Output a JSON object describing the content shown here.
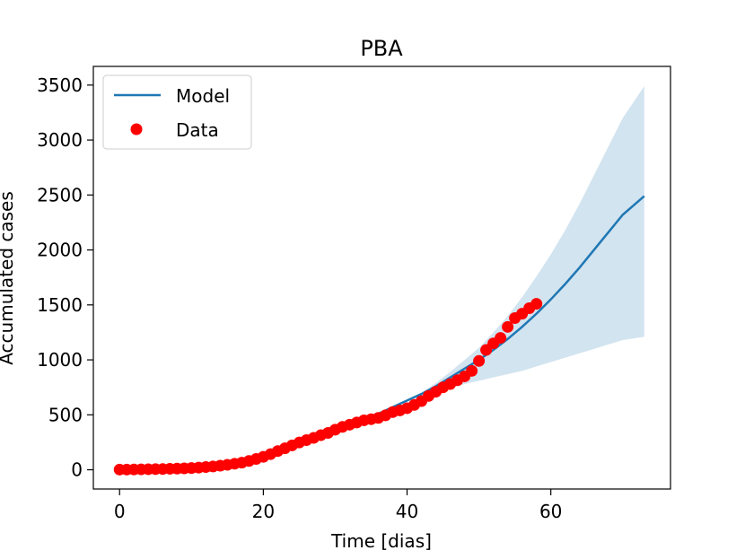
{
  "chart_data": {
    "type": "line",
    "title": "PBA",
    "xlabel": "Time [dias]",
    "ylabel": "Accumulated cases",
    "xlim": [
      -3.65,
      76.65
    ],
    "ylim": [
      -175,
      3670
    ],
    "xticks": [
      0,
      20,
      40,
      60
    ],
    "yticks": [
      0,
      500,
      1000,
      1500,
      2000,
      2500,
      3000,
      3500
    ],
    "grid": false,
    "legend": {
      "placement": "top-left",
      "entries": [
        {
          "label": "Model",
          "marker": "line",
          "color": "#1f77b4"
        },
        {
          "label": "Data",
          "marker": "circle",
          "color": "#ff0000"
        }
      ]
    },
    "colors": {
      "model": "#1f77b4",
      "band": "#1f77b4",
      "data": "#ff0000"
    },
    "model": {
      "name": "Model",
      "x": [
        0,
        5,
        10,
        15,
        20,
        25,
        30,
        35,
        40,
        42,
        44,
        46,
        48,
        50,
        52,
        54,
        56,
        58,
        60,
        62,
        64,
        66,
        68,
        70,
        73
      ],
      "y": [
        2,
        10,
        25,
        60,
        140,
        250,
        370,
        480,
        630,
        690,
        760,
        840,
        920,
        1000,
        1090,
        1190,
        1300,
        1420,
        1550,
        1690,
        1840,
        2000,
        2160,
        2320,
        2490
      ]
    },
    "band": {
      "x": [
        42,
        44,
        46,
        48,
        50,
        52,
        54,
        56,
        58,
        60,
        62,
        64,
        66,
        68,
        70,
        73
      ],
      "upper": [
        700,
        790,
        890,
        1000,
        1110,
        1250,
        1400,
        1570,
        1760,
        1960,
        2180,
        2420,
        2680,
        2940,
        3200,
        3490
      ],
      "lower": [
        660,
        700,
        740,
        780,
        810,
        840,
        870,
        900,
        940,
        980,
        1020,
        1060,
        1100,
        1140,
        1180,
        1210
      ]
    },
    "data": {
      "name": "Data",
      "x": [
        0,
        1,
        2,
        3,
        4,
        5,
        6,
        7,
        8,
        9,
        10,
        11,
        12,
        13,
        14,
        15,
        16,
        17,
        18,
        19,
        20,
        21,
        22,
        23,
        24,
        25,
        26,
        27,
        28,
        29,
        30,
        31,
        32,
        33,
        34,
        35,
        36,
        37,
        38,
        39,
        40,
        41,
        42,
        43,
        44,
        45,
        46,
        47,
        48,
        49,
        50,
        51,
        52,
        53,
        54,
        55,
        56,
        57,
        58
      ],
      "y": [
        2,
        2,
        3,
        4,
        5,
        6,
        7,
        9,
        11,
        13,
        16,
        20,
        25,
        30,
        37,
        45,
        55,
        65,
        80,
        98,
        118,
        142,
        170,
        195,
        222,
        248,
        270,
        290,
        315,
        335,
        365,
        390,
        410,
        430,
        450,
        460,
        472,
        495,
        525,
        540,
        560,
        590,
        625,
        672,
        710,
        750,
        780,
        815,
        850,
        900,
        990,
        1090,
        1150,
        1200,
        1300,
        1380,
        1420,
        1470,
        1510
      ]
    }
  }
}
